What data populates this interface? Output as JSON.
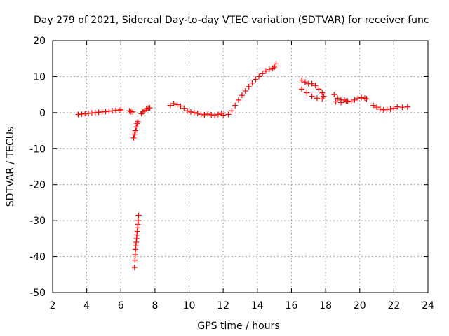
{
  "chart_data": {
    "type": "scatter",
    "title": "Day 279 of 2021, Sidereal Day-to-day VTEC variation (SDTVAR) for receiver func",
    "xlabel": "GPS time / hours",
    "ylabel": "SDTVAR / TECUs",
    "xlim": [
      2,
      24
    ],
    "ylim": [
      -50,
      20
    ],
    "xticks": [
      2,
      4,
      6,
      8,
      10,
      12,
      14,
      16,
      18,
      20,
      22,
      24
    ],
    "yticks": [
      -50,
      -40,
      -30,
      -20,
      -10,
      0,
      10,
      20
    ],
    "grid": true,
    "marker": "+",
    "color": "#ff0000",
    "series": [
      {
        "name": "SDTVAR",
        "x": [
          3.5,
          3.7,
          3.9,
          4.1,
          4.3,
          4.5,
          4.7,
          4.9,
          5.1,
          5.3,
          5.5,
          5.7,
          5.9,
          6.0,
          6.5,
          6.6,
          6.7,
          6.75,
          6.8,
          6.85,
          6.9,
          6.95,
          7.0,
          6.8,
          6.82,
          6.84,
          6.86,
          6.88,
          6.9,
          6.92,
          6.94,
          6.96,
          6.98,
          7.0,
          7.02,
          7.04,
          7.2,
          7.3,
          7.4,
          7.5,
          7.6,
          7.7,
          8.9,
          9.1,
          9.3,
          9.5,
          9.7,
          9.9,
          10.1,
          10.3,
          10.5,
          10.7,
          10.9,
          11.1,
          11.3,
          11.5,
          11.7,
          11.9,
          12.0,
          12.3,
          12.5,
          12.7,
          12.9,
          13.1,
          13.3,
          13.5,
          13.7,
          13.9,
          14.1,
          14.3,
          14.5,
          14.7,
          14.9,
          15.0,
          15.1,
          16.6,
          16.8,
          17.0,
          17.2,
          17.4,
          17.6,
          17.8,
          17.9,
          16.6,
          16.9,
          17.2,
          17.5,
          17.8,
          18.5,
          18.7,
          18.9,
          19.1,
          19.3,
          19.5,
          19.7,
          19.9,
          20.1,
          20.3,
          20.4,
          18.6,
          18.9,
          19.2,
          20.8,
          21.0,
          21.2,
          21.4,
          21.6,
          21.8,
          22.0,
          22.2,
          22.5,
          22.8
        ],
        "y": [
          -0.5,
          -0.4,
          -0.3,
          -0.2,
          -0.1,
          0.0,
          0.1,
          0.2,
          0.3,
          0.4,
          0.5,
          0.6,
          0.7,
          0.8,
          0.5,
          0.3,
          0.2,
          -7.0,
          -6.0,
          -5.0,
          -4.0,
          -3.0,
          -2.5,
          -43.0,
          -41.0,
          -39.5,
          -38.0,
          -37.0,
          -36.0,
          -35.0,
          -34.0,
          -33.0,
          -32.0,
          -31.0,
          -30.0,
          -28.5,
          -0.3,
          0.2,
          0.6,
          1.0,
          1.2,
          1.3,
          2.0,
          2.5,
          2.2,
          1.8,
          1.2,
          0.5,
          0.2,
          0.0,
          -0.2,
          -0.5,
          -0.6,
          -0.4,
          -0.6,
          -0.8,
          -0.5,
          -0.2,
          -0.7,
          -0.5,
          0.5,
          2.0,
          3.5,
          4.8,
          6.0,
          7.2,
          8.2,
          9.2,
          10.0,
          10.8,
          11.5,
          12.0,
          12.3,
          12.6,
          13.5,
          9.0,
          8.5,
          8.0,
          8.0,
          7.5,
          6.5,
          5.5,
          4.5,
          6.5,
          5.5,
          4.5,
          4.0,
          3.8,
          5.0,
          4.0,
          3.5,
          3.5,
          3.2,
          3.0,
          3.5,
          4.0,
          4.2,
          4.0,
          3.8,
          3.0,
          2.8,
          3.2,
          2.0,
          1.5,
          1.0,
          0.8,
          0.9,
          1.0,
          1.2,
          1.6,
          1.5,
          1.6
        ]
      }
    ]
  }
}
